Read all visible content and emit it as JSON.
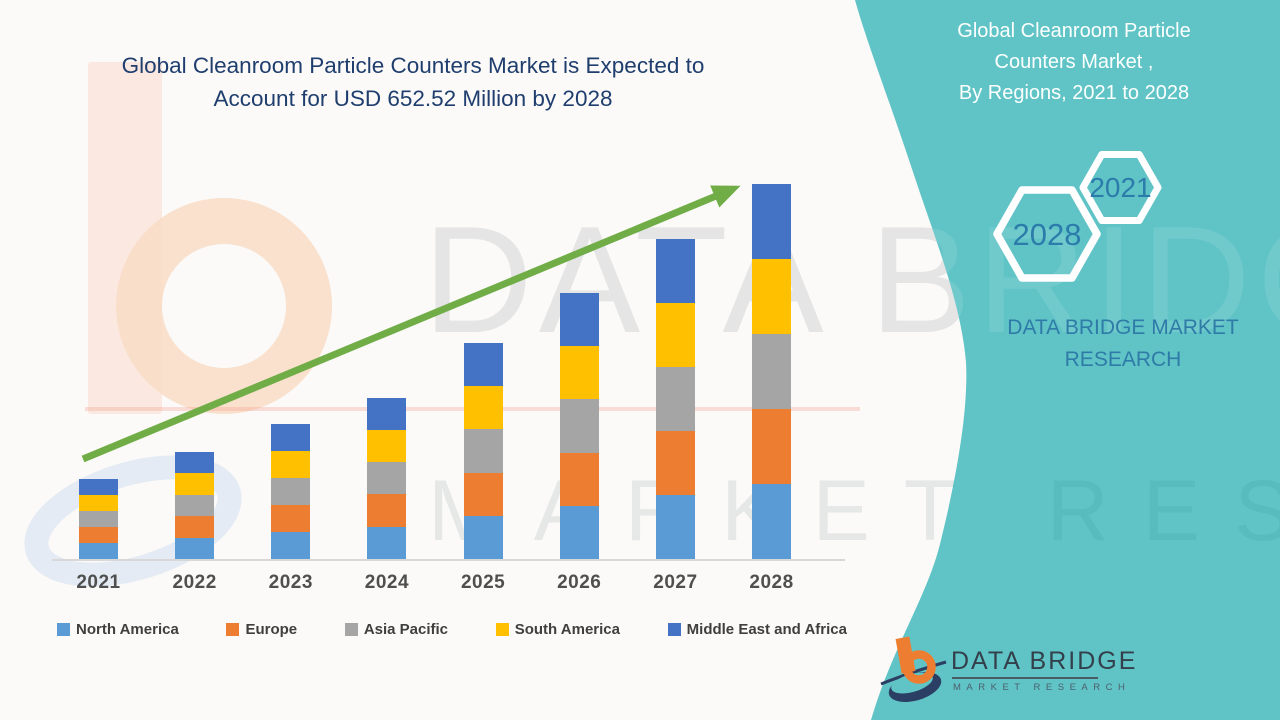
{
  "title": {
    "line1": "Global Cleanroom Particle Counters Market is Expected to",
    "line2": "Account for USD 652.52 Million by 2028"
  },
  "chart_data": {
    "type": "bar",
    "stacked": true,
    "units": "USD Million",
    "title": "Global Cleanroom Particle Counters Market is Expected to Account for USD 652.52 Million by 2028",
    "xlabel": "",
    "ylabel": "",
    "gridlines": false,
    "legend_position": "bottom",
    "categories": [
      "2021",
      "2022",
      "2023",
      "2024",
      "2025",
      "2026",
      "2027",
      "2028"
    ],
    "series": [
      {
        "name": "North America",
        "color": "#5B9BD5",
        "values": [
          28.1,
          37.2,
          46.9,
          56.2,
          75.1,
          92.6,
          111.6,
          130.5
        ]
      },
      {
        "name": "Europe",
        "color": "#ED7D31",
        "values": [
          28.1,
          37.2,
          46.9,
          56.2,
          75.1,
          92.6,
          111.6,
          130.5
        ]
      },
      {
        "name": "Asia Pacific",
        "color": "#A5A5A5",
        "values": [
          28.1,
          37.2,
          46.9,
          56.2,
          75.1,
          92.6,
          111.6,
          130.5
        ]
      },
      {
        "name": "South America",
        "color": "#FFC000",
        "values": [
          28.1,
          37.2,
          46.9,
          56.2,
          75.1,
          92.6,
          111.6,
          130.5
        ]
      },
      {
        "name": "Middle East and Africa",
        "color": "#4472C4",
        "values": [
          28.1,
          37.2,
          46.9,
          56.2,
          75.1,
          92.6,
          111.6,
          130.52
        ]
      }
    ],
    "totals_estimated": [
      140.5,
      186.0,
      234.5,
      281.0,
      375.5,
      463.0,
      558.0,
      652.52
    ],
    "trend_arrow_color": "#70AD47"
  },
  "side_panel": {
    "heading_line1": "Global Cleanroom Particle",
    "heading_line2": "Counters Market ,",
    "heading_line3": "By Regions,  2021 to 2028",
    "hex_large_label": "2028",
    "hex_small_label": "2021",
    "brand_line1": "DATA BRIDGE MARKET",
    "brand_line2": "RESEARCH",
    "panel_color": "#60C4C7"
  },
  "footer_logo": {
    "brand": "DATA BRIDGE",
    "sub": "MARKET RESEARCH"
  },
  "watermark": {
    "big": "DATA BRIDGE",
    "spread": "MARKET RESEARCH"
  },
  "colors": {
    "title_text": "#1F3E6E",
    "axis_line": "#D8D8D8",
    "year_label": "#4F4F4F",
    "legend_text": "#3F3F3F",
    "hex_label": "#2B7CAB",
    "panel_brand_text": "#2F7BA8"
  }
}
